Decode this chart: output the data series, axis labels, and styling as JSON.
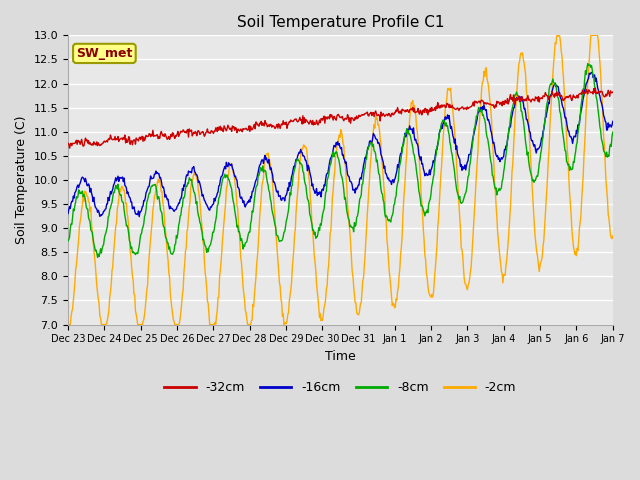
{
  "title": "Soil Temperature Profile C1",
  "xlabel": "Time",
  "ylabel": "Soil Temperature (C)",
  "annotation": "SW_met",
  "ylim": [
    7.0,
    13.0
  ],
  "yticks": [
    7.0,
    7.5,
    8.0,
    8.5,
    9.0,
    9.5,
    10.0,
    10.5,
    11.0,
    11.5,
    12.0,
    12.5,
    13.0
  ],
  "line_colors": {
    "-32cm": "#cc0000",
    "-16cm": "#0000cc",
    "-8cm": "#00aa00",
    "-2cm": "#ffaa00"
  },
  "fig_facecolor": "#dcdcdc",
  "ax_facecolor": "#e8e8e8",
  "x_labels": [
    "Dec 23",
    "Dec 24",
    "Dec 25",
    "Dec 26",
    "Dec 27",
    "Dec 28",
    "Dec 29",
    "Dec 30",
    "Dec 31",
    "Jan 1",
    "Jan 2",
    "Jan 3",
    "Jan 4",
    "Jan 5",
    "Jan 6",
    "Jan 7"
  ],
  "num_days": 15,
  "pts_per_day": 48
}
